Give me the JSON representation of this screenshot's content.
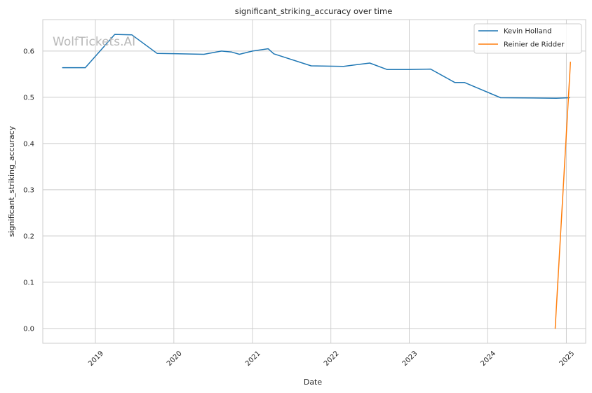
{
  "chart_data": {
    "type": "line",
    "title": "significant_striking_accuracy over time",
    "xlabel": "Date",
    "ylabel": "significant_striking_accuracy",
    "watermark": "WolfTickets.AI",
    "x_ticks": [
      "2019",
      "2020",
      "2021",
      "2022",
      "2023",
      "2024",
      "2025"
    ],
    "y_ticks": [
      "0.0",
      "0.1",
      "0.2",
      "0.3",
      "0.4",
      "0.5",
      "0.6"
    ],
    "xlim": [
      "2018-05-01",
      "2025-04-01"
    ],
    "ylim": [
      -0.032,
      0.668
    ],
    "grid": true,
    "legend_position": "top-right",
    "series": [
      {
        "name": "Kevin Holland",
        "color": "#1f77b4",
        "points": [
          [
            "2018-08-01",
            0.564
          ],
          [
            "2018-11-15",
            0.564
          ],
          [
            "2019-04-01",
            0.636
          ],
          [
            "2019-06-20",
            0.635
          ],
          [
            "2019-10-15",
            0.595
          ],
          [
            "2020-05-20",
            0.593
          ],
          [
            "2020-08-10",
            0.6
          ],
          [
            "2020-09-25",
            0.598
          ],
          [
            "2020-11-01",
            0.593
          ],
          [
            "2021-01-01",
            0.6
          ],
          [
            "2021-03-15",
            0.605
          ],
          [
            "2021-04-10",
            0.594
          ],
          [
            "2021-10-01",
            0.568
          ],
          [
            "2022-03-01",
            0.567
          ],
          [
            "2022-07-01",
            0.574
          ],
          [
            "2022-09-20",
            0.56
          ],
          [
            "2023-01-01",
            0.56
          ],
          [
            "2023-04-10",
            0.561
          ],
          [
            "2023-08-01",
            0.532
          ],
          [
            "2023-09-15",
            0.532
          ],
          [
            "2024-03-01",
            0.499
          ],
          [
            "2024-11-15",
            0.498
          ],
          [
            "2025-01-15",
            0.499
          ]
        ]
      },
      {
        "name": "Reinier de Ridder",
        "color": "#ff7f0e",
        "points": [
          [
            "2024-11-10",
            0.0
          ],
          [
            "2025-01-20",
            0.576
          ]
        ]
      }
    ]
  }
}
